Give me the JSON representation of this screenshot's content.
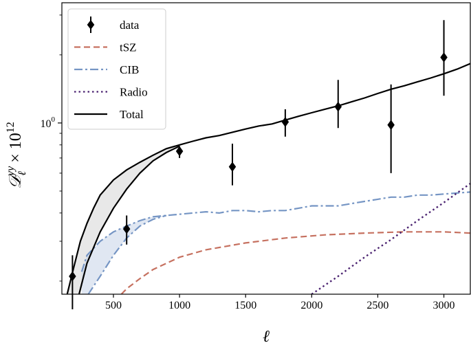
{
  "chart_data": {
    "type": "line",
    "xlabel": "ℓ",
    "ylabel": "𝒟ℓ^yy × 10^12",
    "ylabel_parts": {
      "main": "𝒟",
      "sub": "ℓ",
      "sup": "yy",
      "times": "× 10",
      "exp": "12"
    },
    "x_scale": "linear",
    "y_scale": "log",
    "xlim": [
      110,
      3200
    ],
    "ylim": [
      0.175,
      3.4
    ],
    "x_ticks": [
      500,
      1000,
      1500,
      2000,
      2500,
      3000
    ],
    "x_tick_labels": [
      "500",
      "1000",
      "1500",
      "2000",
      "2500",
      "3000"
    ],
    "y_ticks": [
      1.0
    ],
    "y_tick_labels": [
      "10",
      "0"
    ],
    "grid": false,
    "legend_position": "top-left",
    "series": [
      {
        "name": "data",
        "kind": "errorbar",
        "color": "#000000",
        "x": [
          190,
          600,
          1000,
          1400,
          1800,
          2200,
          2600,
          3000
        ],
        "y": [
          0.21,
          0.34,
          0.75,
          0.64,
          1.01,
          1.18,
          0.98,
          1.95
        ],
        "y_low": [
          0.15,
          0.29,
          0.7,
          0.53,
          0.87,
          0.95,
          0.6,
          1.32
        ],
        "y_high": [
          0.26,
          0.39,
          0.79,
          0.81,
          1.15,
          1.55,
          1.48,
          2.85
        ]
      },
      {
        "name": "tSZ",
        "kind": "dashed",
        "color": "#c67160",
        "x": [
          560,
          600,
          700,
          800,
          1000,
          1200,
          1500,
          1800,
          2100,
          2400,
          2700,
          3000,
          3200
        ],
        "y": [
          0.175,
          0.185,
          0.205,
          0.225,
          0.255,
          0.275,
          0.295,
          0.31,
          0.32,
          0.326,
          0.33,
          0.33,
          0.326
        ]
      },
      {
        "name": "CIB",
        "kind": "dashdot",
        "color": "#7595c4",
        "x": [
          260,
          300,
          400,
          500,
          600,
          700,
          800,
          900,
          1000,
          1100,
          1200,
          1300,
          1400,
          1500,
          1600,
          1700,
          1800,
          1900,
          2000,
          2100,
          2200,
          2300,
          2400,
          2500,
          2600,
          2700,
          2800,
          2900,
          3000,
          3100,
          3200
        ],
        "y": [
          0.22,
          0.26,
          0.3,
          0.33,
          0.35,
          0.37,
          0.385,
          0.39,
          0.395,
          0.4,
          0.405,
          0.4,
          0.41,
          0.41,
          0.405,
          0.41,
          0.41,
          0.42,
          0.43,
          0.43,
          0.43,
          0.44,
          0.45,
          0.46,
          0.47,
          0.47,
          0.48,
          0.48,
          0.485,
          0.49,
          0.495
        ]
      },
      {
        "name": "CIB (lower bound)",
        "kind": "dashdot",
        "color": "#7595c4",
        "x": [
          310,
          400,
          500,
          600,
          700,
          800,
          900
        ],
        "y": [
          0.175,
          0.21,
          0.26,
          0.31,
          0.35,
          0.375,
          0.39
        ]
      },
      {
        "name": "Radio",
        "kind": "dotted",
        "color": "#4a2270",
        "x": [
          2000,
          2200,
          2400,
          2600,
          2800,
          3000,
          3200
        ],
        "y": [
          0.175,
          0.21,
          0.255,
          0.305,
          0.37,
          0.445,
          0.54
        ]
      },
      {
        "name": "Total",
        "kind": "solid",
        "color": "#000000",
        "x": [
          150,
          200,
          250,
          300,
          350,
          400,
          500,
          600,
          700,
          800,
          900,
          1000,
          1100,
          1200,
          1300,
          1400,
          1500,
          1600,
          1700,
          1800,
          1900,
          2000,
          2100,
          2200,
          2300,
          2400,
          2500,
          2600,
          2700,
          2800,
          2900,
          3000,
          3100,
          3200
        ],
        "y": [
          0.175,
          0.23,
          0.3,
          0.36,
          0.42,
          0.48,
          0.56,
          0.62,
          0.67,
          0.72,
          0.77,
          0.8,
          0.83,
          0.86,
          0.88,
          0.91,
          0.94,
          0.97,
          0.99,
          1.03,
          1.07,
          1.11,
          1.15,
          1.19,
          1.24,
          1.29,
          1.35,
          1.41,
          1.46,
          1.52,
          1.58,
          1.65,
          1.73,
          1.83
        ]
      },
      {
        "name": "Total (lower bound)",
        "kind": "solid",
        "color": "#000000",
        "x": [
          240,
          300,
          400,
          500,
          600,
          700,
          800,
          900,
          1000
        ],
        "y": [
          0.175,
          0.24,
          0.33,
          0.42,
          0.51,
          0.6,
          0.68,
          0.74,
          0.79
        ]
      }
    ],
    "bands": [
      {
        "of": "Total",
        "color": "#d8d8d8",
        "opacity": 0.6,
        "x": [
          150,
          200,
          250,
          300,
          400,
          500,
          600,
          700,
          800,
          900,
          1000
        ],
        "upper": [
          0.175,
          0.23,
          0.3,
          0.36,
          0.48,
          0.56,
          0.62,
          0.67,
          0.72,
          0.77,
          0.8
        ],
        "lower": [
          0.175,
          0.175,
          0.175,
          0.24,
          0.33,
          0.42,
          0.51,
          0.6,
          0.68,
          0.74,
          0.79
        ]
      },
      {
        "of": "CIB",
        "color": "#c7d3e8",
        "opacity": 0.55,
        "x": [
          260,
          300,
          400,
          500,
          600,
          700,
          800,
          900
        ],
        "upper": [
          0.22,
          0.26,
          0.3,
          0.33,
          0.35,
          0.37,
          0.385,
          0.39
        ],
        "lower": [
          0.175,
          0.175,
          0.21,
          0.26,
          0.31,
          0.35,
          0.375,
          0.39
        ]
      }
    ],
    "legend": [
      {
        "label": "data",
        "kind": "marker",
        "color": "#000000"
      },
      {
        "label": "tSZ",
        "kind": "dashed",
        "color": "#c67160"
      },
      {
        "label": "CIB",
        "kind": "dashdot",
        "color": "#7595c4"
      },
      {
        "label": "Radio",
        "kind": "dotted",
        "color": "#4a2270"
      },
      {
        "label": "Total",
        "kind": "solid",
        "color": "#000000"
      }
    ]
  }
}
